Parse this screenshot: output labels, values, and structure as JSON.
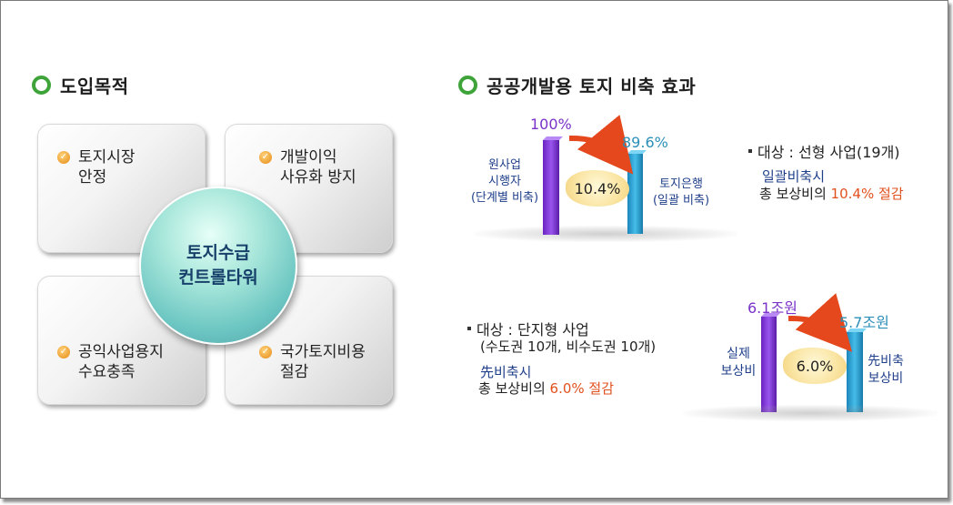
{
  "left": {
    "title": "도입목적",
    "quadrants": [
      {
        "lines": [
          "토지시장",
          "안정"
        ]
      },
      {
        "lines": [
          "개발이익",
          "사유화 방지"
        ]
      },
      {
        "lines": [
          "공익사업용지",
          "수요충족"
        ]
      },
      {
        "lines": [
          "국가토지비용",
          "절감"
        ]
      }
    ],
    "center": [
      "토지수급",
      "컨트롤타워"
    ]
  },
  "right": {
    "title": "공공개발용 토지 비축 효과",
    "top": {
      "bar_left": {
        "value_label": "100%",
        "caption": [
          "원사업",
          "시행자",
          "(단계별 비축)"
        ],
        "color": "#8a3ee0"
      },
      "bar_right": {
        "value_label": "89.6%",
        "caption": [
          "토지은행",
          "(일괄 비축)"
        ],
        "color": "#2fa3d6"
      },
      "diff": "10.4%",
      "info": {
        "target": "대상 : 선형 사업(19개)",
        "kind": "일괄비축시",
        "saving_prefix": "총 보상비의 ",
        "saving_value": "10.4% 절감"
      }
    },
    "bottom": {
      "bar_left": {
        "value_label": "6.1조원",
        "caption": [
          "실제",
          "보상비"
        ],
        "color": "#8a3ee0"
      },
      "bar_right": {
        "value_label": "5.7조원",
        "caption": [
          "先비축",
          "보상비"
        ],
        "color": "#2fa3d6"
      },
      "diff": "6.0%",
      "info": {
        "target": "대상 : 단지형 사업",
        "target_sub": "(수도권 10개, 비수도권 10개)",
        "kind": "先비축시",
        "saving_prefix": "총 보상비의 ",
        "saving_value": "6.0% 절감"
      }
    }
  },
  "chart_data": [
    {
      "type": "bar",
      "categories": [
        "원사업 시행자 (단계별 비축)",
        "토지은행 (일괄 비축)"
      ],
      "values": [
        100,
        89.6
      ],
      "unit": "%"
    },
    {
      "type": "bar",
      "categories": [
        "실제 보상비",
        "先비축 보상비"
      ],
      "values": [
        6.1,
        5.7
      ],
      "unit": "조원"
    }
  ]
}
